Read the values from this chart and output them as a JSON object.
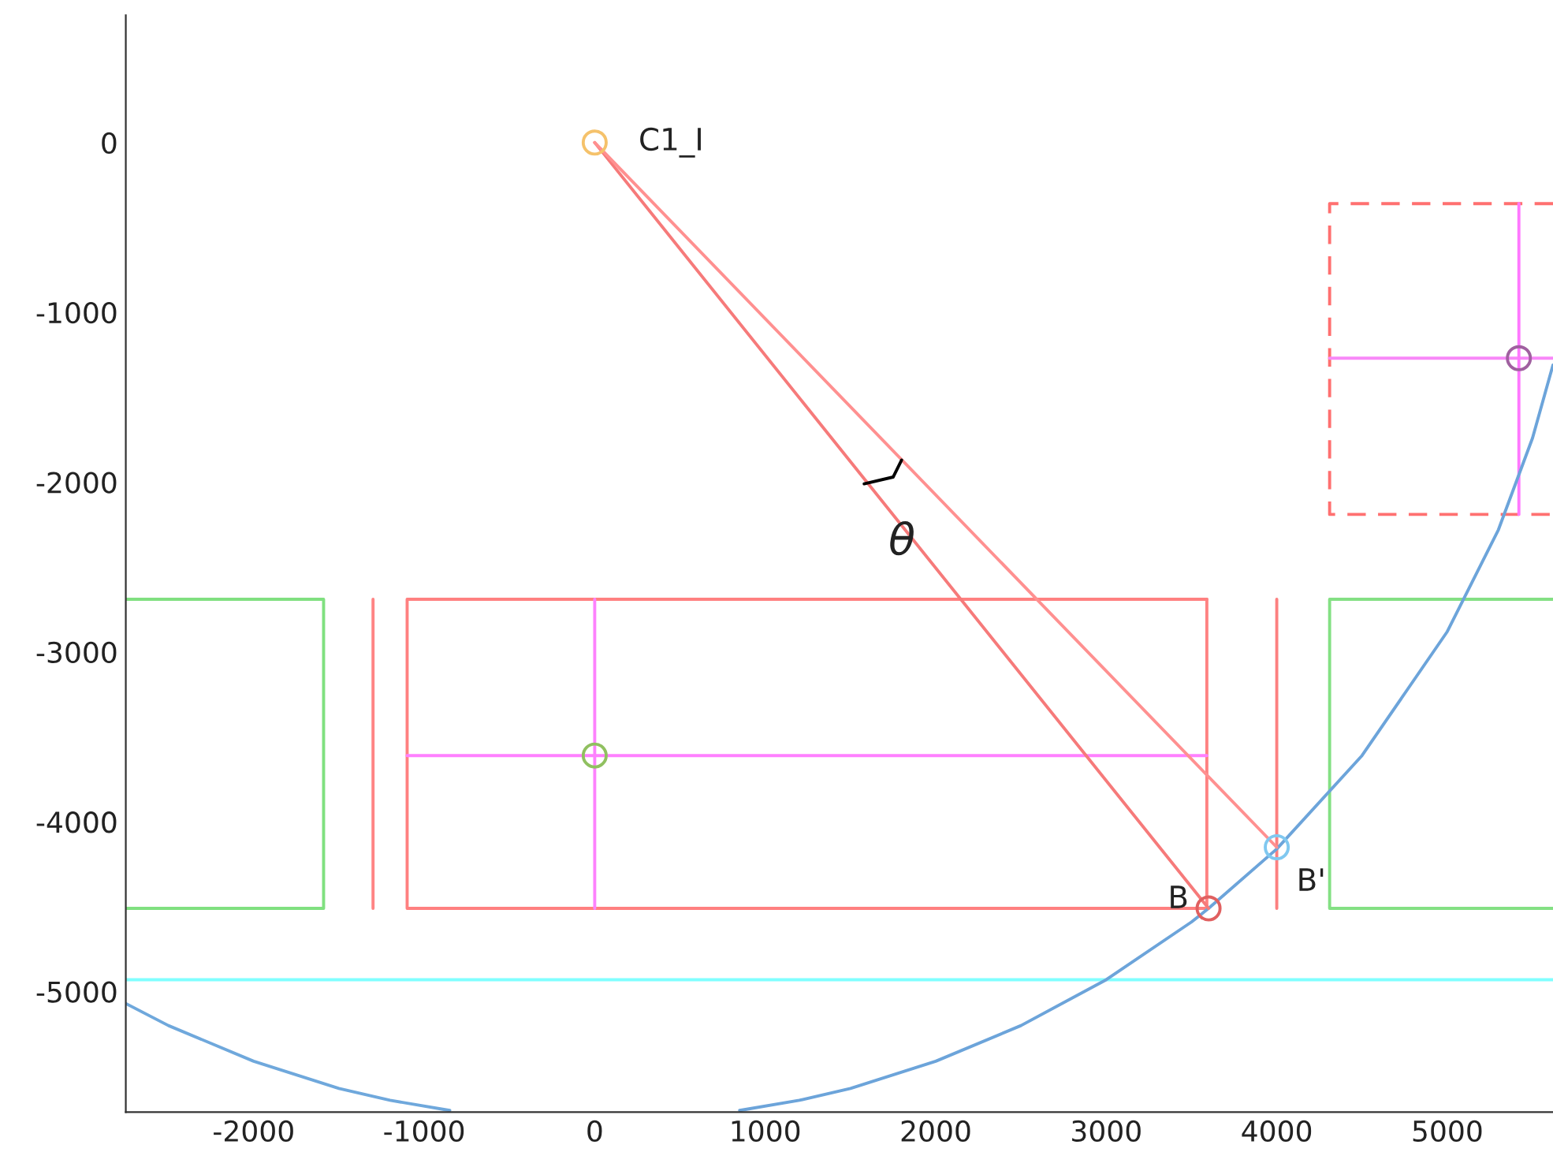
{
  "chart_data": {
    "type": "line",
    "xlim": [
      -2750,
      5620
    ],
    "ylim": [
      -5710,
      750
    ],
    "xticks": [
      -2000,
      -1000,
      0,
      1000,
      2000,
      3000,
      4000,
      5000
    ],
    "yticks": [
      -5000,
      -4000,
      -3000,
      -2000,
      -1000,
      0
    ],
    "grid": false,
    "legend": false,
    "series": [
      {
        "color": "#ff8080",
        "x": [
          3590,
          -1100,
          -1100,
          3590
        ],
        "values": [
          -2690,
          -2690,
          -4510,
          -4510
        ]
      },
      {
        "color": "#fe8282",
        "x": [
          3590,
          3590
        ],
        "values": [
          -2690,
          -4510
        ]
      },
      {
        "color": "#ff80ff",
        "x": [
          -1100,
          3590
        ],
        "values": [
          -3610,
          -3610
        ]
      },
      {
        "color": "#fd82fd",
        "x": [
          0,
          0
        ],
        "values": [
          -2690,
          -4510
        ]
      },
      {
        "color": "#ff8484",
        "x": [
          -1300,
          -1300
        ],
        "values": [
          -2690,
          -4510
        ]
      },
      {
        "color": "#fc8080",
        "x": [
          4000,
          4000
        ],
        "values": [
          -2690,
          -4510
        ]
      },
      {
        "color": "#80e080",
        "x": [
          -2750,
          -1590,
          -1590,
          -2750
        ],
        "values": [
          -2690,
          -2690,
          -4510,
          -4510
        ]
      },
      {
        "color": "#84e084",
        "x": [
          5620,
          4310,
          4310,
          5620
        ],
        "values": [
          -2690,
          -2690,
          -4510,
          -4510
        ]
      },
      {
        "color": "#80ffff",
        "x": [
          -2750,
          5620
        ],
        "values": [
          -4930,
          -4930
        ]
      },
      {
        "color": "#ff7070",
        "line_style": "dashed",
        "x": [
          5620,
          4310,
          4310,
          5620
        ],
        "values": [
          -360,
          -360,
          -2190,
          -2190
        ]
      },
      {
        "color": "#f888f8",
        "x": [
          4310,
          5620
        ],
        "values": [
          -1270,
          -1270
        ]
      },
      {
        "color": "#ff78ff",
        "x": [
          5420,
          5420
        ],
        "values": [
          -360,
          -2190
        ]
      },
      {
        "color": "#6fa8dc",
        "x": [
          -2750,
          -2500,
          -2000,
          -1500,
          -1200,
          -850
        ],
        "values": [
          -5070,
          -5200,
          -5410,
          -5570,
          -5640,
          -5700
        ]
      },
      {
        "color": "#6ca4da",
        "x": [
          850,
          1200,
          1500,
          2000,
          2500,
          3000,
          3500,
          3600,
          4000,
          4500,
          5000,
          5300,
          5500,
          5620
        ],
        "values": [
          -5700,
          -5640,
          -5570,
          -5410,
          -5200,
          -4930,
          -4590,
          -4510,
          -4160,
          -3610,
          -2880,
          -2280,
          -1740,
          -1310
        ]
      },
      {
        "color": "#f67a7a",
        "x": [
          0,
          3600
        ],
        "values": [
          0,
          -4510
        ]
      },
      {
        "color": "#ff9090",
        "x": [
          0,
          4000
        ],
        "values": [
          0,
          -4150
        ]
      },
      {
        "color": "#000000",
        "x": [
          1580,
          1750,
          1800
        ],
        "values": [
          -2010,
          -1970,
          -1870
        ]
      },
      {
        "type": "scatter",
        "marker": "circle",
        "color": "#f5c26b",
        "x": [
          0
        ],
        "values": [
          0
        ]
      },
      {
        "type": "scatter",
        "marker": "circle",
        "color": "#e06060",
        "x": [
          3600
        ],
        "values": [
          -4510
        ]
      },
      {
        "type": "scatter",
        "marker": "circle",
        "color": "#80c8f0",
        "x": [
          4000
        ],
        "values": [
          -4150
        ]
      },
      {
        "type": "scatter",
        "marker": "circle",
        "color": "#90c060",
        "x": [
          0
        ],
        "values": [
          -3610
        ]
      },
      {
        "type": "scatter",
        "marker": "circle",
        "color": "#a060a0",
        "x": [
          5420
        ],
        "values": [
          -1270
        ]
      }
    ],
    "annotations": [
      {
        "text": "C1_I",
        "x": 0,
        "y": 0
      },
      {
        "text": "B",
        "x": 3600,
        "y": -4510
      },
      {
        "text": "B'",
        "x": 4000,
        "y": -4150
      },
      {
        "text": "θ",
        "x": 1750,
        "y": -1970
      }
    ]
  }
}
